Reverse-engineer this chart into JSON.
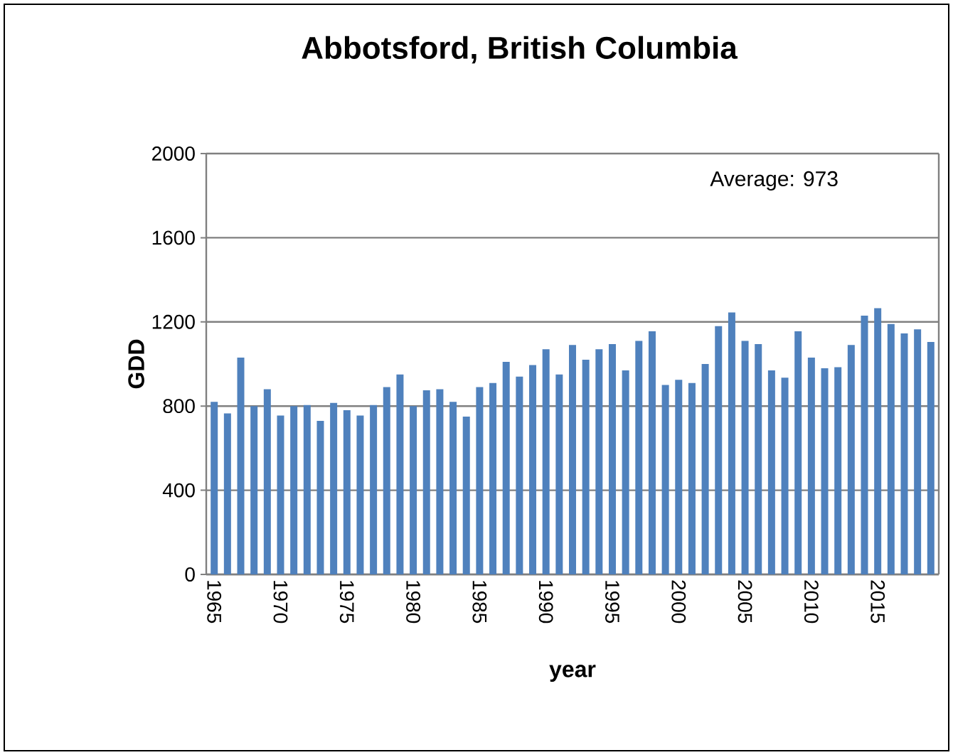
{
  "chart_data": {
    "type": "bar",
    "title": "Abbotsford, British Columbia",
    "xlabel": "year",
    "ylabel": "GDD",
    "annotations": [
      "Average:  973"
    ],
    "x": [
      1965,
      1966,
      1967,
      1968,
      1969,
      1970,
      1971,
      1972,
      1973,
      1974,
      1975,
      1976,
      1977,
      1978,
      1979,
      1980,
      1981,
      1982,
      1983,
      1984,
      1985,
      1986,
      1987,
      1988,
      1989,
      1990,
      1991,
      1992,
      1993,
      1994,
      1995,
      1996,
      1997,
      1998,
      1999,
      2000,
      2001,
      2002,
      2003,
      2004,
      2005,
      2006,
      2007,
      2008,
      2009,
      2010,
      2011,
      2012,
      2013,
      2014,
      2015,
      2016,
      2017,
      2018,
      2019
    ],
    "values": [
      820,
      765,
      1030,
      800,
      880,
      755,
      800,
      805,
      730,
      815,
      780,
      755,
      805,
      890,
      950,
      800,
      875,
      880,
      820,
      750,
      890,
      910,
      1010,
      940,
      995,
      1070,
      950,
      1090,
      1020,
      1070,
      1095,
      970,
      1110,
      1155,
      900,
      925,
      910,
      1000,
      1180,
      1245,
      1110,
      1095,
      970,
      935,
      1155,
      1030,
      980,
      985,
      1090,
      1230,
      1265,
      1190,
      1145,
      1165,
      1105
    ],
    "color": "#4f81bd",
    "xlim": [
      1964.4,
      2019.6
    ],
    "xticks": [
      1965,
      1970,
      1975,
      1980,
      1985,
      1990,
      1995,
      2000,
      2005,
      2010,
      2015
    ],
    "ylim": [
      0,
      2000
    ],
    "yticks": [
      0,
      400,
      800,
      1200,
      1600,
      2000
    ],
    "grid": "y"
  }
}
